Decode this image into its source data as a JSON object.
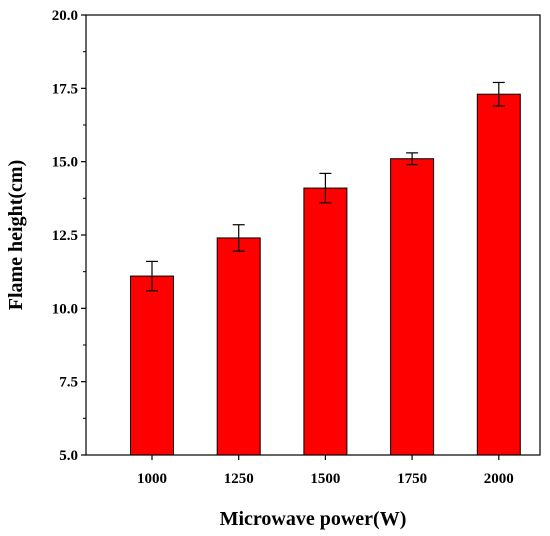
{
  "chart_data": {
    "type": "bar",
    "title": "",
    "xlabel": "Microwave power(W)",
    "ylabel": "Flame height(cm)",
    "categories": [
      "1000",
      "1250",
      "1500",
      "1750",
      "2000"
    ],
    "values": [
      11.1,
      12.4,
      14.1,
      15.1,
      17.3
    ],
    "errors": [
      0.5,
      0.45,
      0.5,
      0.2,
      0.4
    ],
    "ylim": [
      5.0,
      20.0
    ],
    "yticks": [
      5.0,
      7.5,
      10.0,
      12.5,
      15.0,
      17.5,
      20.0
    ],
    "ytick_labels": [
      "5.0",
      "7.5",
      "10.0",
      "12.5",
      "15.0",
      "17.5",
      "20.0"
    ],
    "grid": false,
    "legend": "none",
    "colors": {
      "bar_fill": "#ff0000",
      "bar_stroke": "#000000",
      "axis": "#000000"
    }
  }
}
